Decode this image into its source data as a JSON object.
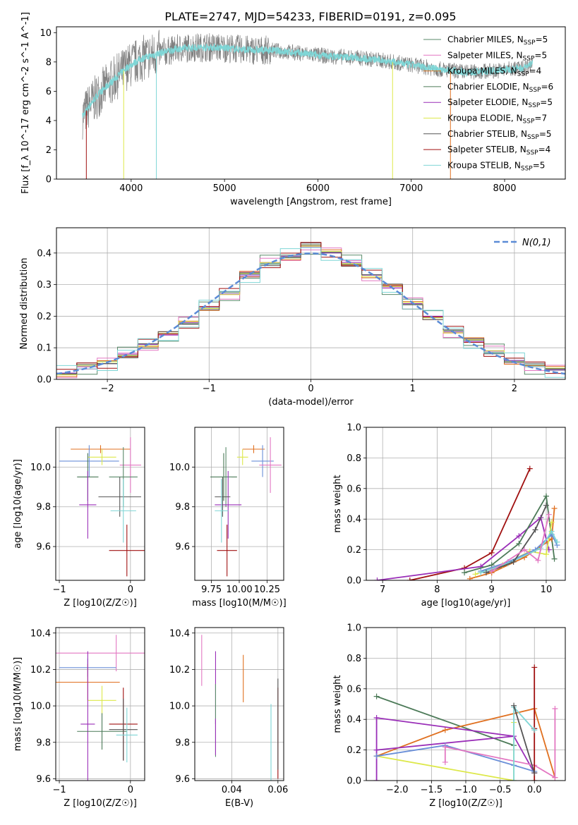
{
  "figure": {
    "title": "PLATE=2747, MJD=54233, FIBERID=0191, z=0.095"
  },
  "legend_entries": [
    {
      "label": "Chabrier MILES, N_SSP=5",
      "color": "#5a8a6a"
    },
    {
      "label": "Salpeter MILES, N_SSP=5",
      "color": "#e377c2"
    },
    {
      "label": "Kroupa MILES, N_SSP=4",
      "color": "#e07020"
    },
    {
      "label": "Chabrier ELODIE, N_SSP=6",
      "color": "#4c7a58"
    },
    {
      "label": "Salpeter ELODIE, N_SSP=5",
      "color": "#9a2fb8"
    },
    {
      "label": "Kroupa ELODIE, N_SSP=7",
      "color": "#dde84a"
    },
    {
      "label": "Chabrier STELIB, N_SSP=5",
      "color": "#555555"
    },
    {
      "label": "Salpeter STELIB, N_SSP=4",
      "color": "#a01010"
    },
    {
      "label": "Kroupa STELIB, N_SSP=5",
      "color": "#7fd6d6"
    }
  ],
  "colors": {
    "grid": "#b0b0b0",
    "spectrum": "#808080",
    "model": "#7fd6d6",
    "normal": "#5b8bd6",
    "extra_blue": "#6a8fd8"
  },
  "chart_data": [
    {
      "id": "spectrum",
      "type": "line",
      "xlabel": "wavelength [Angstrom, rest frame]",
      "ylabel": "Flux [f_λ 10^-17 erg cm^-2 s^-1 A^-1]",
      "xlim": [
        3200,
        8650
      ],
      "ylim": [
        0,
        10.4
      ],
      "xticks": [
        4000,
        5000,
        6000,
        7000,
        8000
      ],
      "yticks": [
        0,
        2,
        4,
        6,
        8,
        10
      ],
      "grid": false,
      "legend_position": "top-right",
      "series": [
        {
          "name": "Chabrier STELIB, N_SSP=5",
          "x": [
            3480,
            3550,
            3650,
            3800,
            3950,
            4100,
            4300,
            4500,
            4700,
            4900,
            5100,
            5300,
            5500,
            5800,
            6100,
            6400,
            6700,
            7000,
            7300,
            7600,
            7900,
            8200,
            8300
          ],
          "y": [
            4.3,
            5.0,
            5.8,
            6.7,
            7.6,
            8.2,
            8.6,
            8.9,
            9.0,
            9.0,
            8.9,
            8.8,
            8.8,
            8.6,
            8.4,
            8.3,
            8.1,
            7.8,
            7.5,
            7.3,
            7.4,
            7.6,
            7.9
          ]
        }
      ]
    },
    {
      "id": "residuals",
      "type": "line",
      "xlabel": "(data-model)/error",
      "ylabel": "Normed distribution",
      "xlim": [
        -2.5,
        2.5
      ],
      "ylim": [
        0,
        0.48
      ],
      "xticks": [
        -2,
        -1,
        0,
        1,
        2
      ],
      "yticks": [
        0.0,
        0.1,
        0.2,
        0.3,
        0.4
      ],
      "grid": true,
      "legend_position": "top-right",
      "series": [
        {
          "name": "N(0,1)",
          "function": "standard normal pdf"
        },
        {
          "type": "step",
          "bin_edges": [
            -2.5,
            -2.3,
            -2.1,
            -1.9,
            -1.7,
            -1.5,
            -1.3,
            -1.1,
            -0.9,
            -0.7,
            -0.5,
            -0.3,
            -0.1,
            0.1,
            0.3,
            0.5,
            0.7,
            0.9,
            1.1,
            1.3,
            1.5,
            1.7,
            1.9,
            2.1,
            2.3,
            2.5
          ],
          "values": [
            0.02,
            0.04,
            0.05,
            0.08,
            0.11,
            0.14,
            0.18,
            0.23,
            0.27,
            0.33,
            0.37,
            0.39,
            0.42,
            0.4,
            0.37,
            0.33,
            0.29,
            0.24,
            0.2,
            0.15,
            0.12,
            0.09,
            0.06,
            0.04,
            0.03
          ]
        }
      ]
    },
    {
      "id": "age-vs-Z",
      "type": "scatter",
      "xlabel": "Z [log10(Z/Z☉)]",
      "ylabel": "age [log10(age/yr)]",
      "xlim": [
        -1.05,
        0.2
      ],
      "ylim": [
        9.43,
        10.2
      ],
      "xticks": [
        -1,
        0
      ],
      "yticks": [
        9.6,
        9.8,
        10.0
      ],
      "grid": true,
      "points": [
        {
          "x": -0.42,
          "y": 10.09,
          "xerr": 0.42,
          "yerr": 0.02,
          "color": "#e07020"
        },
        {
          "x": -0.58,
          "y": 10.03,
          "xerr": 0.42,
          "yerr": 0.08,
          "color": "#6a8fd8"
        },
        {
          "x": 0.0,
          "y": 10.01,
          "xerr": 0.15,
          "yerr": 0.14,
          "color": "#e377c2"
        },
        {
          "x": -0.4,
          "y": 10.05,
          "xerr": 0.2,
          "yerr": 0.04,
          "color": "#dde84a"
        },
        {
          "x": -0.6,
          "y": 9.95,
          "xerr": 0.15,
          "yerr": 0.12,
          "color": "#4c7a58"
        },
        {
          "x": -0.1,
          "y": 9.95,
          "xerr": 0.2,
          "yerr": 0.15,
          "color": "#5a8a6a"
        },
        {
          "x": -0.6,
          "y": 9.81,
          "xerr": 0.12,
          "yerr": 0.17,
          "color": "#9a2fb8"
        },
        {
          "x": -0.15,
          "y": 9.85,
          "xerr": 0.3,
          "yerr": 0.1,
          "color": "#555555"
        },
        {
          "x": -0.1,
          "y": 9.78,
          "xerr": 0.18,
          "yerr": 0.16,
          "color": "#7fd6d6"
        },
        {
          "x": -0.05,
          "y": 9.58,
          "xerr": 0.25,
          "yerr": 0.13,
          "color": "#a01010"
        }
      ]
    },
    {
      "id": "age-vs-mass",
      "type": "scatter",
      "xlabel": "mass [log10(M/M☉)]",
      "ylabel": "",
      "xlim": [
        9.6,
        10.4
      ],
      "ylim": [
        9.43,
        10.2
      ],
      "xticks": [
        9.75,
        10.0,
        10.25
      ],
      "yticks": [
        9.6,
        9.8,
        10.0
      ],
      "grid": true,
      "points": [
        {
          "x": 10.13,
          "y": 10.09,
          "xerr": 0.1,
          "yerr": 0.02,
          "color": "#e07020"
        },
        {
          "x": 10.21,
          "y": 10.03,
          "xerr": 0.1,
          "yerr": 0.08,
          "color": "#6a8fd8"
        },
        {
          "x": 10.28,
          "y": 10.01,
          "xerr": 0.1,
          "yerr": 0.14,
          "color": "#e377c2"
        },
        {
          "x": 10.03,
          "y": 10.05,
          "xerr": 0.05,
          "yerr": 0.04,
          "color": "#dde84a"
        },
        {
          "x": 9.86,
          "y": 9.95,
          "xerr": 0.12,
          "yerr": 0.12,
          "color": "#4c7a58"
        },
        {
          "x": 9.88,
          "y": 9.95,
          "xerr": 0.05,
          "yerr": 0.15,
          "color": "#5a8a6a"
        },
        {
          "x": 9.9,
          "y": 9.81,
          "xerr": 0.12,
          "yerr": 0.17,
          "color": "#9a2fb8"
        },
        {
          "x": 9.85,
          "y": 9.85,
          "xerr": 0.07,
          "yerr": 0.1,
          "color": "#555555"
        },
        {
          "x": 9.84,
          "y": 9.78,
          "xerr": 0.06,
          "yerr": 0.16,
          "color": "#7fd6d6"
        },
        {
          "x": 9.89,
          "y": 9.58,
          "xerr": 0.09,
          "yerr": 0.13,
          "color": "#a01010"
        }
      ]
    },
    {
      "id": "mass-weight-vs-age",
      "type": "line",
      "xlabel": "age [log10(age/yr)]",
      "ylabel": "mass weight",
      "xlim": [
        6.7,
        10.35
      ],
      "ylim": [
        0,
        1.0
      ],
      "xticks": [
        7,
        8,
        9,
        10
      ],
      "yticks": [
        0.0,
        0.2,
        0.4,
        0.6,
        0.8,
        1.0
      ],
      "grid": true,
      "series": [
        {
          "color": "#a01010",
          "x": [
            7.5,
            8.5,
            9.0,
            9.7
          ],
          "y": [
            0.0,
            0.08,
            0.18,
            0.73
          ]
        },
        {
          "color": "#9a2fb8",
          "x": [
            6.9,
            8.8,
            9.5,
            9.9,
            10.05
          ],
          "y": [
            0.0,
            0.09,
            0.29,
            0.41,
            0.2
          ]
        },
        {
          "color": "#4c7a58",
          "x": [
            8.5,
            9.0,
            9.5,
            10.0,
            10.15
          ],
          "y": [
            0.05,
            0.1,
            0.24,
            0.55,
            0.14
          ]
        },
        {
          "color": "#e07020",
          "x": [
            8.6,
            9.0,
            9.6,
            10.1,
            10.15
          ],
          "y": [
            0.01,
            0.05,
            0.15,
            0.27,
            0.47
          ]
        },
        {
          "color": "#dde84a",
          "x": [
            8.7,
            9.2,
            9.7,
            10.0,
            10.1
          ],
          "y": [
            0.04,
            0.1,
            0.19,
            0.17,
            0.38
          ]
        },
        {
          "color": "#6a8fd8",
          "x": [
            8.8,
            9.3,
            9.8,
            10.1,
            10.2
          ],
          "y": [
            0.06,
            0.12,
            0.2,
            0.3,
            0.23
          ]
        },
        {
          "color": "#7fd6d6",
          "x": [
            8.8,
            9.3,
            9.9,
            10.1,
            10.2
          ],
          "y": [
            0.05,
            0.11,
            0.21,
            0.32,
            0.25
          ]
        },
        {
          "color": "#555555",
          "x": [
            8.9,
            9.4,
            9.8,
            10.0
          ],
          "y": [
            0.05,
            0.12,
            0.33,
            0.49
          ]
        },
        {
          "color": "#e377c2",
          "x": [
            9.0,
            9.6,
            9.85,
            10.05
          ],
          "y": [
            0.06,
            0.2,
            0.13,
            0.43
          ]
        }
      ]
    },
    {
      "id": "mass-vs-Z",
      "type": "scatter",
      "xlabel": "Z [log10(Z/Z☉)]",
      "ylabel": "mass [log10(M/M☉)]",
      "xlim": [
        -1.05,
        0.2
      ],
      "ylim": [
        9.59,
        10.43
      ],
      "xticks": [
        -1,
        0
      ],
      "yticks": [
        9.6,
        9.8,
        10.0,
        10.2,
        10.4
      ],
      "grid": true,
      "points": [
        {
          "x": -0.2,
          "y": 10.29,
          "xerr": 0.9,
          "yerr": 0.1,
          "color": "#e377c2"
        },
        {
          "x": -0.6,
          "y": 10.21,
          "xerr": 0.4,
          "yerr": 0.05,
          "color": "#6a8fd8"
        },
        {
          "x": -0.6,
          "y": 10.13,
          "xerr": 0.45,
          "yerr": 0.1,
          "color": "#e07020"
        },
        {
          "x": -0.4,
          "y": 10.03,
          "xerr": 0.2,
          "yerr": 0.08,
          "color": "#dde84a"
        },
        {
          "x": -0.6,
          "y": 9.9,
          "xerr": 0.1,
          "yerr": 0.4,
          "color": "#9a2fb8"
        },
        {
          "x": -0.1,
          "y": 9.9,
          "xerr": 0.2,
          "yerr": 0.2,
          "color": "#a01010"
        },
        {
          "x": -0.4,
          "y": 9.86,
          "xerr": 0.35,
          "yerr": 0.1,
          "color": "#4c7a58"
        },
        {
          "x": -0.1,
          "y": 9.87,
          "xerr": 0.2,
          "yerr": 0.17,
          "color": "#555555"
        },
        {
          "x": -0.05,
          "y": 9.84,
          "xerr": 0.15,
          "yerr": 0.15,
          "color": "#7fd6d6"
        }
      ]
    },
    {
      "id": "mass-vs-EBV",
      "type": "scatter",
      "xlabel": "E(B-V)",
      "ylabel": "",
      "xlim": [
        0.024,
        0.0625
      ],
      "ylim": [
        9.59,
        10.43
      ],
      "xticks": [
        0.04,
        0.06
      ],
      "yticks": [
        9.6,
        9.8,
        10.0,
        10.2,
        10.4
      ],
      "grid": true,
      "points": [
        {
          "x": 0.027,
          "y": 10.25,
          "yerr": 0.14,
          "color": "#e377c2"
        },
        {
          "x": 0.033,
          "y": 10.1,
          "yerr": 0.2,
          "color": "#9a2fb8"
        },
        {
          "x": 0.033,
          "y": 9.92,
          "yerr": 0.2,
          "color": "#5a8a6a"
        },
        {
          "x": 0.033,
          "y": 9.83,
          "yerr": 0.1,
          "color": "#9a2fb8"
        },
        {
          "x": 0.045,
          "y": 10.15,
          "yerr": 0.13,
          "color": "#e07020"
        },
        {
          "x": 0.057,
          "y": 9.79,
          "yerr": 0.22,
          "color": "#7fd6d6"
        },
        {
          "x": 0.06,
          "y": 9.85,
          "yerr": 0.25,
          "color": "#a01010"
        },
        {
          "x": 0.06,
          "y": 9.9,
          "yerr": 0.25,
          "color": "#555555"
        }
      ]
    },
    {
      "id": "mass-weight-vs-Z",
      "type": "line",
      "xlabel": "Z [log10(Z/Z☉)]",
      "ylabel": "mass weight",
      "xlim": [
        -2.45,
        0.45
      ],
      "ylim": [
        0,
        1.0
      ],
      "xticks": [
        -2.0,
        -1.5,
        -1.0,
        -0.5,
        0.0
      ],
      "yticks": [
        0.0,
        0.2,
        0.4,
        0.6,
        0.8,
        1.0
      ],
      "grid": true,
      "series": [
        {
          "color": "#4c7a58",
          "x": [
            -2.3,
            -0.3
          ],
          "y": [
            0.55,
            0.23
          ]
        },
        {
          "color": "#e07020",
          "x": [
            -2.3,
            -1.3,
            0.0,
            0.3
          ],
          "y": [
            0.16,
            0.33,
            0.47,
            0.02
          ]
        },
        {
          "color": "#dde84a",
          "x": [
            -2.3,
            -0.3,
            -0.3
          ],
          "y": [
            0.16,
            0.0,
            0.38
          ]
        },
        {
          "color": "#9a2fb8",
          "x": [
            -2.3,
            -2.3,
            -0.3,
            0.0
          ],
          "y": [
            0.0,
            0.41,
            0.29,
            0.05
          ]
        },
        {
          "color": "#9a2fb8",
          "x": [
            -2.3,
            -0.3
          ],
          "y": [
            0.2,
            0.29
          ]
        },
        {
          "color": "#6a8fd8",
          "x": [
            -2.3,
            -1.3,
            -0.3,
            0.0
          ],
          "y": [
            0.16,
            0.23,
            0.1,
            0.06
          ]
        },
        {
          "color": "#e377c2",
          "x": [
            -1.3,
            -1.3,
            0.0,
            0.3,
            0.3
          ],
          "y": [
            0.12,
            0.22,
            0.1,
            0.02,
            0.47
          ]
        },
        {
          "color": "#a01010",
          "x": [
            0.0,
            0.0,
            0.0
          ],
          "y": [
            0.0,
            0.34,
            0.74
          ]
        },
        {
          "color": "#7fd6d6",
          "x": [
            -0.3,
            -0.3,
            0.0
          ],
          "y": [
            0.0,
            0.48,
            0.33
          ]
        },
        {
          "color": "#555555",
          "x": [
            -0.3,
            0.0
          ],
          "y": [
            0.49,
            0.05
          ]
        }
      ]
    }
  ]
}
